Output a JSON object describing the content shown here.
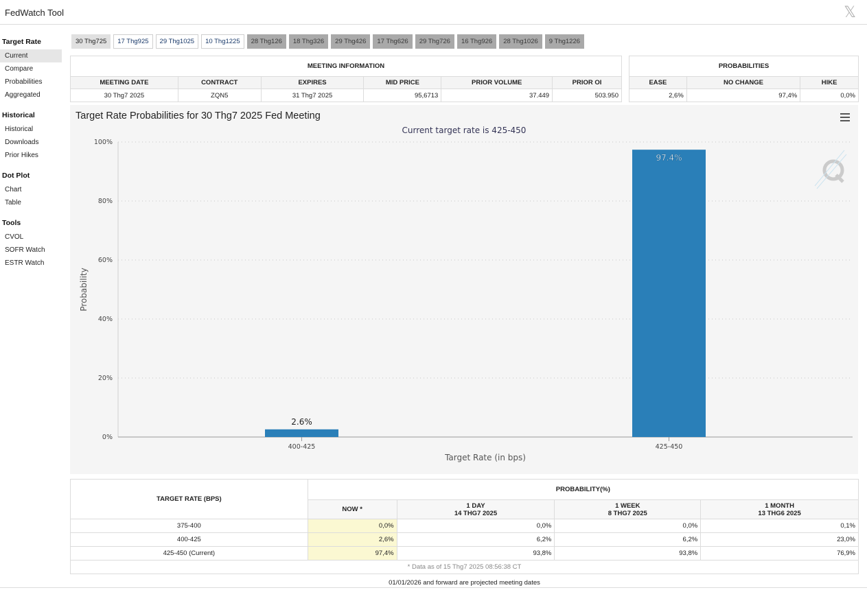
{
  "app": {
    "title": "FedWatch Tool",
    "close_glyph": "𝕏"
  },
  "sidebar": {
    "sections": [
      {
        "title": "Target Rate",
        "items": [
          "Current",
          "Compare",
          "Probabilities",
          "Aggregated"
        ]
      },
      {
        "title": "Historical",
        "items": [
          "Historical",
          "Downloads",
          "Prior Hikes"
        ]
      },
      {
        "title": "Dot Plot",
        "items": [
          "Chart",
          "Table"
        ]
      },
      {
        "title": "Tools",
        "items": [
          "CVOL",
          "SOFR Watch",
          "ESTR Watch"
        ]
      }
    ],
    "active_item": "Current"
  },
  "tabs": [
    {
      "label": "30 Thg725",
      "state": "selected"
    },
    {
      "label": "17 Thg925",
      "state": "normal"
    },
    {
      "label": "29 Thg1025",
      "state": "normal"
    },
    {
      "label": "10 Thg1225",
      "state": "normal"
    },
    {
      "label": "28 Thg126",
      "state": "projected"
    },
    {
      "label": "18 Thg326",
      "state": "projected"
    },
    {
      "label": "29 Thg426",
      "state": "projected"
    },
    {
      "label": "17 Thg626",
      "state": "projected"
    },
    {
      "label": "29 Thg726",
      "state": "projected"
    },
    {
      "label": "16 Thg926",
      "state": "projected"
    },
    {
      "label": "28 Thg1026",
      "state": "projected"
    },
    {
      "label": "9 Thg1226",
      "state": "projected"
    }
  ],
  "meeting_info": {
    "group_title": "MEETING INFORMATION",
    "headers": [
      "MEETING DATE",
      "CONTRACT",
      "EXPIRES",
      "MID PRICE",
      "PRIOR VOLUME",
      "PRIOR OI"
    ],
    "row": [
      "30 Thg7 2025",
      "ZQN5",
      "31 Thg7 2025",
      "95,6713",
      "37.449",
      "503.950"
    ]
  },
  "probabilities": {
    "group_title": "PROBABILITIES",
    "headers": [
      "EASE",
      "NO CHANGE",
      "HIKE"
    ],
    "row": [
      "2,6%",
      "97,4%",
      "0,0%"
    ]
  },
  "chart_data": {
    "type": "bar",
    "title": "Target Rate Probabilities for 30 Thg7 2025 Fed Meeting",
    "subtitle": "Current target rate is 425-450",
    "xlabel": "Target Rate (in bps)",
    "ylabel": "Probability",
    "categories": [
      "400-425",
      "425-450"
    ],
    "values": [
      2.6,
      97.4
    ],
    "data_labels": [
      "2.6%",
      "97.4%"
    ],
    "ylim": [
      0,
      100
    ],
    "y_ticks": [
      0,
      20,
      40,
      60,
      80,
      100
    ],
    "y_tick_labels": [
      "0%",
      "20%",
      "40%",
      "60%",
      "80%",
      "100%"
    ],
    "grid": true,
    "bar_color": "#2a7fb8"
  },
  "bottom_table": {
    "target_rate_header": "TARGET RATE (BPS)",
    "probability_header": "PROBABILITY(%)",
    "sub_headers": [
      {
        "line1": "NOW *",
        "line2": ""
      },
      {
        "line1": "1 DAY",
        "line2": "14 THG7 2025"
      },
      {
        "line1": "1 WEEK",
        "line2": "8 THG7 2025"
      },
      {
        "line1": "1 MONTH",
        "line2": "13 THG6 2025"
      }
    ],
    "rows": [
      {
        "rate": "375-400",
        "values": [
          "0,0%",
          "0,0%",
          "0,0%",
          "0,1%"
        ]
      },
      {
        "rate": "400-425",
        "values": [
          "2,6%",
          "6,2%",
          "6,2%",
          "23,0%"
        ]
      },
      {
        "rate": "425-450 (Current)",
        "values": [
          "97,4%",
          "93,8%",
          "93,8%",
          "76,9%"
        ]
      }
    ],
    "footnote": "* Data as of 15 Thg7 2025 08:56:38 CT"
  },
  "projected_note": "01/01/2026 and forward are projected meeting dates"
}
